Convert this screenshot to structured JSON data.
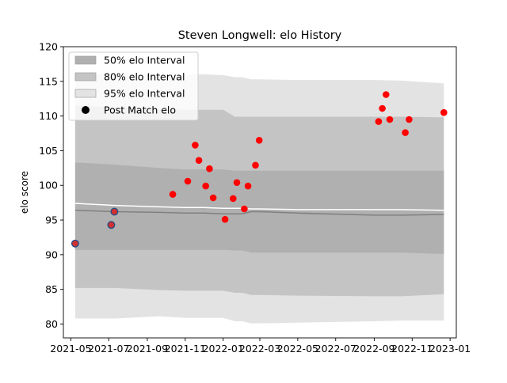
{
  "chart_data": {
    "type": "scatter",
    "title": "Steven Longwell: elo History",
    "xlabel": "",
    "ylabel": "elo score",
    "ylim": [
      78.0,
      120.0
    ],
    "xlim": [
      "2021-04-19",
      "2023-01-11"
    ],
    "yticks": [
      80,
      85,
      90,
      95,
      100,
      105,
      110,
      115,
      120
    ],
    "xticks": [
      {
        "date": "2021-05-01",
        "label": "2021-05"
      },
      {
        "date": "2021-07-01",
        "label": "2021-07"
      },
      {
        "date": "2021-09-01",
        "label": "2021-09"
      },
      {
        "date": "2021-11-01",
        "label": "2021-11"
      },
      {
        "date": "2022-01-01",
        "label": "2022-01"
      },
      {
        "date": "2022-03-01",
        "label": "2022-03"
      },
      {
        "date": "2022-05-01",
        "label": "2022-05"
      },
      {
        "date": "2022-07-01",
        "label": "2022-07"
      },
      {
        "date": "2022-09-01",
        "label": "2022-09"
      },
      {
        "date": "2022-11-01",
        "label": "2022-11"
      },
      {
        "date": "2023-01-01",
        "label": "2023-01"
      }
    ],
    "legend": {
      "placement": "top-left",
      "entries": [
        {
          "label": "50% elo Interval",
          "color": "#b0b0b0"
        },
        {
          "label": "80% elo Interval",
          "color": "#c4c4c4"
        },
        {
          "label": "95% elo Interval",
          "color": "#e3e3e3"
        },
        {
          "label": "Post Match elo",
          "color": "#000000"
        }
      ]
    },
    "bands": {
      "dates": [
        "2021-05-08",
        "2021-07-10",
        "2021-09-20",
        "2021-11-01",
        "2021-12-01",
        "2022-01-01",
        "2022-01-20",
        "2022-02-01",
        "2022-02-15",
        "2022-03-01",
        "2022-05-01",
        "2022-09-01",
        "2022-10-15",
        "2022-12-22"
      ],
      "p95_upper": [
        116.0,
        116.0,
        116.0,
        116.0,
        116.0,
        115.9,
        115.6,
        115.6,
        115.3,
        115.3,
        115.2,
        115.2,
        115.1,
        114.7
      ],
      "p95_lower": [
        80.8,
        80.8,
        81.1,
        80.9,
        80.9,
        80.9,
        80.4,
        80.4,
        80.1,
        80.1,
        80.2,
        80.4,
        80.5,
        80.5
      ],
      "p80_upper": [
        111.5,
        111.3,
        111.0,
        110.9,
        110.9,
        110.9,
        109.9,
        109.9,
        109.9,
        109.9,
        109.9,
        109.9,
        109.9,
        109.8
      ],
      "p80_lower": [
        85.2,
        85.2,
        84.9,
        84.8,
        84.8,
        84.8,
        84.5,
        84.5,
        84.2,
        84.2,
        84.1,
        84.0,
        84.0,
        84.3
      ],
      "p50_upper": [
        103.3,
        103.0,
        102.5,
        102.3,
        102.3,
        102.3,
        102.1,
        102.1,
        102.1,
        102.1,
        102.1,
        102.1,
        102.1,
        102.1
      ],
      "p50_lower": [
        90.7,
        90.7,
        90.7,
        90.7,
        90.7,
        90.7,
        90.6,
        90.6,
        90.3,
        90.3,
        90.3,
        90.3,
        90.3,
        90.1
      ],
      "median": [
        96.4,
        96.2,
        96.1,
        96.0,
        96.0,
        95.9,
        95.9,
        95.9,
        96.2,
        96.2,
        96.0,
        95.7,
        95.7,
        95.8
      ],
      "mean": [
        97.4,
        97.1,
        96.9,
        96.8,
        96.8,
        96.7,
        96.7,
        96.7,
        96.6,
        96.6,
        96.5,
        96.5,
        96.5,
        96.4
      ]
    },
    "band_colors": {
      "p95": "#e3e3e3",
      "p80": "#c4c4c4",
      "p50": "#b0b0b0",
      "median": "#808080",
      "mean": "#ffffff"
    },
    "points": [
      {
        "x": "2021-05-08",
        "y": 91.6,
        "color": "#d03030",
        "edge": "#1f4e8a"
      },
      {
        "x": "2021-07-05",
        "y": 94.3,
        "color": "#d03030",
        "edge": "#1f4e8a"
      },
      {
        "x": "2021-07-10",
        "y": 96.2,
        "color": "#d03030",
        "edge": "#1f4e8a"
      },
      {
        "x": "2021-10-12",
        "y": 98.7,
        "color": "#ff0000"
      },
      {
        "x": "2021-11-05",
        "y": 100.6,
        "color": "#ff0000"
      },
      {
        "x": "2021-11-17",
        "y": 105.8,
        "color": "#ff0000"
      },
      {
        "x": "2021-11-23",
        "y": 103.6,
        "color": "#ff0000"
      },
      {
        "x": "2021-12-04",
        "y": 99.9,
        "color": "#ff0000"
      },
      {
        "x": "2021-12-10",
        "y": 102.4,
        "color": "#ff0000"
      },
      {
        "x": "2021-12-16",
        "y": 98.2,
        "color": "#ff0000"
      },
      {
        "x": "2022-01-04",
        "y": 95.1,
        "color": "#ff0000"
      },
      {
        "x": "2022-01-17",
        "y": 98.1,
        "color": "#ff0000"
      },
      {
        "x": "2022-01-23",
        "y": 100.4,
        "color": "#ff0000"
      },
      {
        "x": "2022-02-04",
        "y": 96.6,
        "color": "#ff0000"
      },
      {
        "x": "2022-02-10",
        "y": 99.9,
        "color": "#ff0000"
      },
      {
        "x": "2022-02-22",
        "y": 102.9,
        "color": "#ff0000"
      },
      {
        "x": "2022-02-28",
        "y": 106.5,
        "color": "#ff0000"
      },
      {
        "x": "2022-09-08",
        "y": 109.2,
        "color": "#ff0000"
      },
      {
        "x": "2022-09-14",
        "y": 111.1,
        "color": "#ff0000"
      },
      {
        "x": "2022-09-20",
        "y": 113.1,
        "color": "#ff0000"
      },
      {
        "x": "2022-09-26",
        "y": 109.5,
        "color": "#ff0000"
      },
      {
        "x": "2022-10-21",
        "y": 107.6,
        "color": "#ff0000"
      },
      {
        "x": "2022-10-27",
        "y": 109.5,
        "color": "#ff0000"
      },
      {
        "x": "2022-12-22",
        "y": 110.5,
        "color": "#ff0000"
      }
    ]
  }
}
